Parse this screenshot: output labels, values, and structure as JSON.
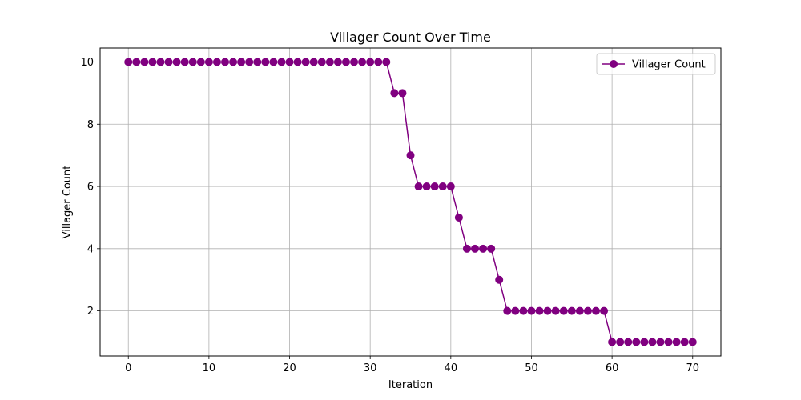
{
  "chart_data": {
    "type": "line",
    "title": "Villager Count Over Time",
    "xlabel": "Iteration",
    "ylabel": "Villager Count",
    "xlim": [
      -3.5,
      73.5
    ],
    "ylim": [
      0.55,
      10.45
    ],
    "xticks": [
      0,
      10,
      20,
      30,
      40,
      50,
      60,
      70
    ],
    "yticks": [
      2,
      4,
      6,
      8,
      10
    ],
    "grid": true,
    "legend_position": "top-right",
    "colors": {
      "series": "#800080",
      "grid": "#b0b0b0"
    },
    "series": [
      {
        "name": "Villager Count",
        "marker": "circle",
        "x": [
          0,
          1,
          2,
          3,
          4,
          5,
          6,
          7,
          8,
          9,
          10,
          11,
          12,
          13,
          14,
          15,
          16,
          17,
          18,
          19,
          20,
          21,
          22,
          23,
          24,
          25,
          26,
          27,
          28,
          29,
          30,
          31,
          32,
          33,
          34,
          35,
          36,
          37,
          38,
          39,
          40,
          41,
          42,
          43,
          44,
          45,
          46,
          47,
          48,
          49,
          50,
          51,
          52,
          53,
          54,
          55,
          56,
          57,
          58,
          59,
          60,
          61,
          62,
          63,
          64,
          65,
          66,
          67,
          68,
          69,
          70
        ],
        "values": [
          10,
          10,
          10,
          10,
          10,
          10,
          10,
          10,
          10,
          10,
          10,
          10,
          10,
          10,
          10,
          10,
          10,
          10,
          10,
          10,
          10,
          10,
          10,
          10,
          10,
          10,
          10,
          10,
          10,
          10,
          10,
          10,
          10,
          9,
          9,
          7,
          6,
          6,
          6,
          6,
          6,
          5,
          4,
          4,
          4,
          4,
          3,
          2,
          2,
          2,
          2,
          2,
          2,
          2,
          2,
          2,
          2,
          2,
          2,
          2,
          1,
          1,
          1,
          1,
          1,
          1,
          1,
          1,
          1,
          1,
          1
        ]
      }
    ]
  }
}
